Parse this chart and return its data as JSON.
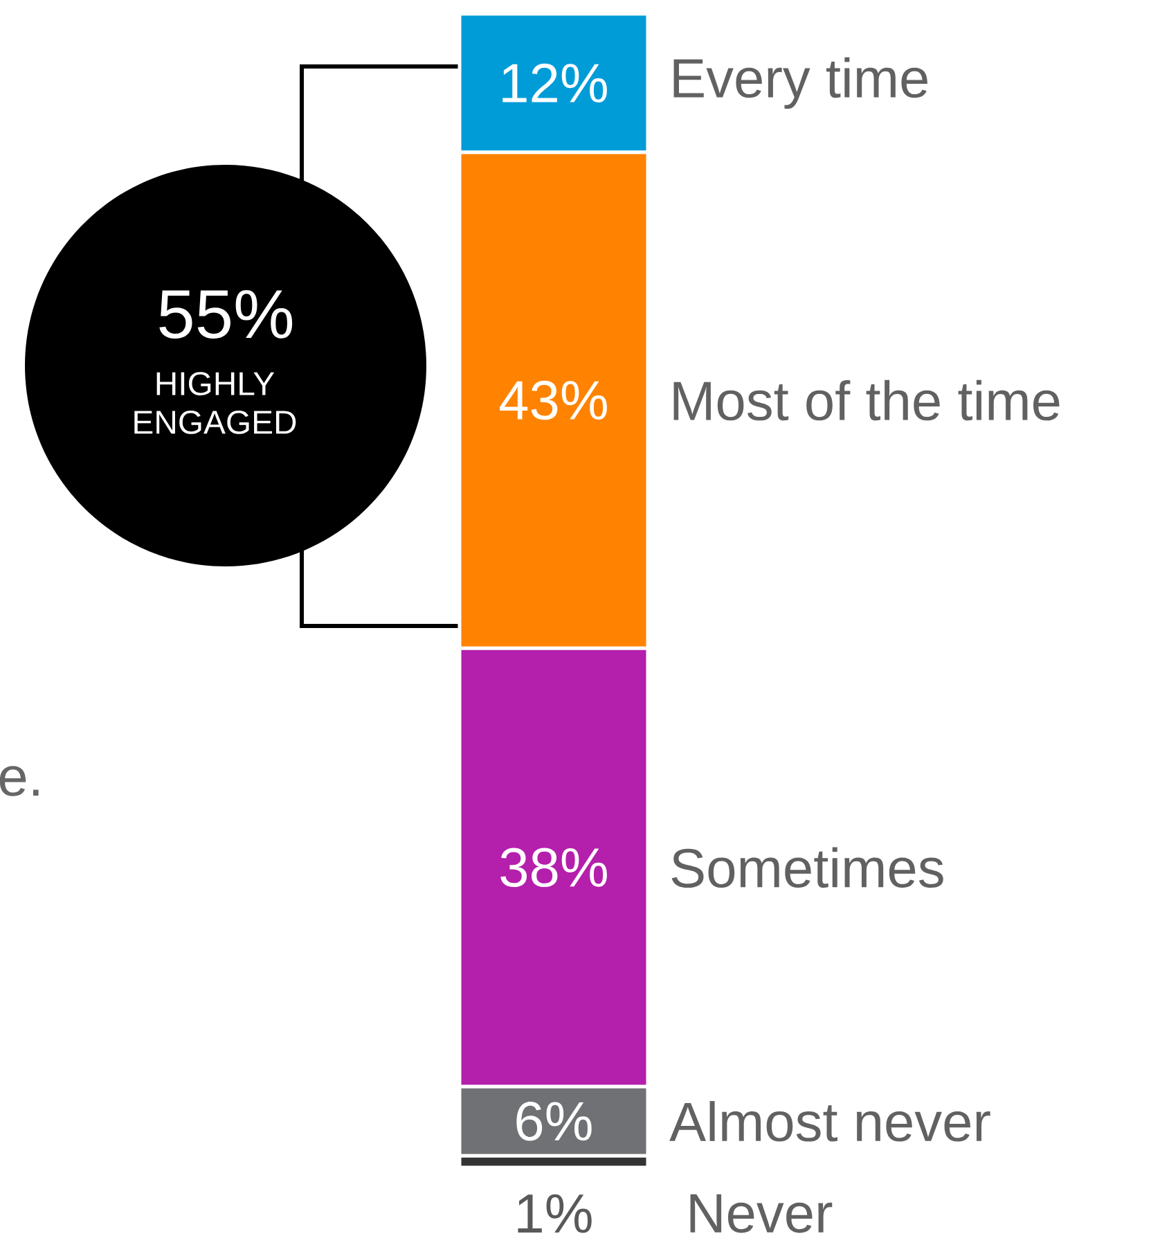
{
  "chart_data": {
    "type": "bar",
    "stacked": true,
    "categories": [
      null
    ],
    "series": [
      {
        "name": "Never",
        "color": "#333333",
        "values": [
          1
        ],
        "value_labels": [
          "1%"
        ]
      },
      {
        "name": "Almost never",
        "color": "#707174",
        "values": [
          6
        ],
        "value_labels": [
          "6%"
        ]
      },
      {
        "name": "Sometimes",
        "color": "#b41fac",
        "values": [
          38
        ],
        "value_labels": [
          "38%"
        ]
      },
      {
        "name": "Most of the time",
        "color": "#ff8300",
        "values": [
          43
        ],
        "value_labels": [
          "43%"
        ]
      },
      {
        "name": "Every time",
        "color": "#009cd8",
        "values": [
          12
        ],
        "value_labels": [
          "12%"
        ]
      }
    ],
    "ylim": [
      0,
      100
    ],
    "annotations": [
      "55%",
      "HIGHLY ENGAGED",
      "e."
    ]
  }
}
